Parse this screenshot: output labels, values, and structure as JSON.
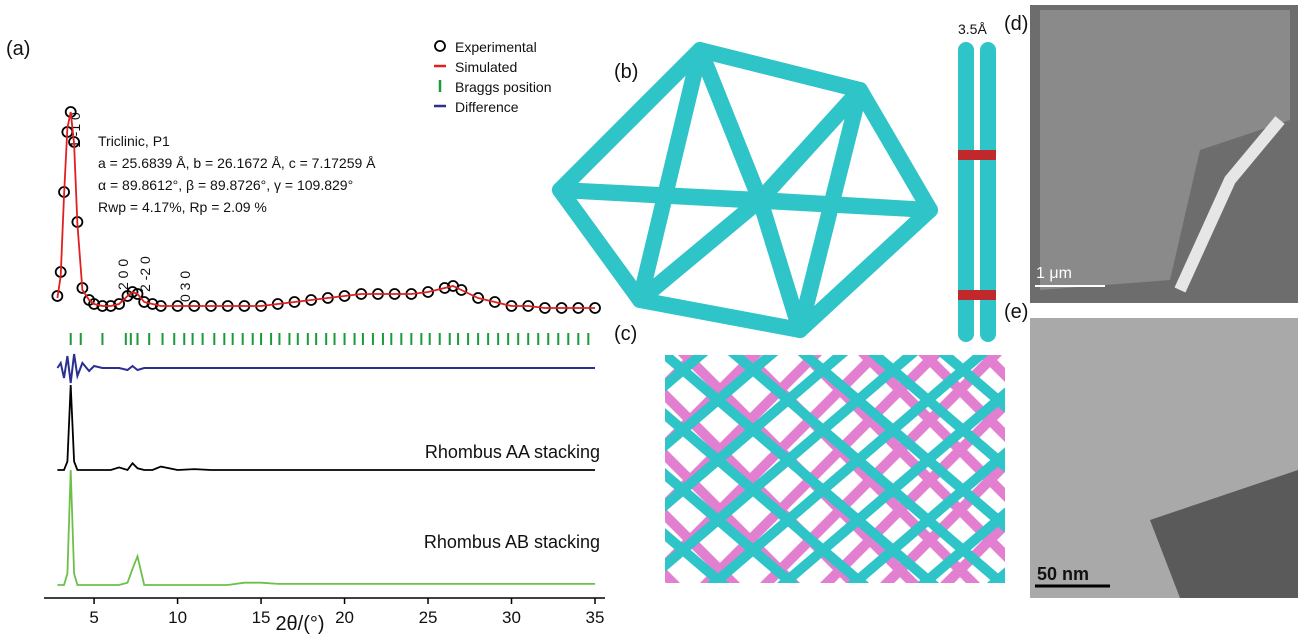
{
  "chart_data": {
    "type": "line",
    "panel_label": "(a)",
    "x_label": "2θ/(°)",
    "xlim": [
      2,
      35
    ],
    "xticks": [
      5,
      10,
      15,
      20,
      25,
      30,
      35
    ],
    "x": [
      2.8,
      3.0,
      3.2,
      3.4,
      3.6,
      3.8,
      4.0,
      4.3,
      4.7,
      5,
      5.5,
      6,
      6.5,
      7,
      7.3,
      7.6,
      8,
      8.5,
      9,
      10,
      11,
      12,
      13,
      14,
      15,
      16,
      17,
      18,
      19,
      20,
      21,
      22,
      23,
      24,
      25,
      26,
      26.5,
      27,
      28,
      29,
      30,
      31,
      32,
      33,
      34,
      35
    ],
    "series": [
      {
        "name": "Experimental",
        "color": "#000000",
        "values": [
          8,
          20,
          60,
          90,
          100,
          85,
          45,
          12,
          6,
          4,
          3,
          3,
          4,
          8,
          10,
          9,
          5,
          4,
          3,
          3,
          3,
          3,
          3,
          3,
          3,
          4,
          5,
          6,
          7,
          8,
          9,
          9,
          9,
          9,
          10,
          12,
          13,
          11,
          7,
          5,
          3,
          3,
          2,
          2,
          2,
          2
        ]
      },
      {
        "name": "Simulated",
        "color": "#e02020",
        "values": [
          7,
          18,
          58,
          92,
          100,
          84,
          44,
          11,
          6,
          4,
          3,
          3,
          4,
          8,
          10,
          9,
          5,
          4,
          3,
          3,
          3,
          3,
          3,
          3,
          3,
          4,
          5,
          6,
          7,
          8,
          9,
          9,
          9,
          9,
          10,
          12,
          13,
          11,
          7,
          5,
          3,
          3,
          2,
          2,
          2,
          2
        ]
      },
      {
        "name": "Difference",
        "color": "#2b2f8f",
        "values": [
          0,
          5,
          -10,
          12,
          -15,
          14,
          -8,
          5,
          -3,
          2,
          0,
          0,
          0,
          -2,
          2,
          -2,
          0,
          0,
          0,
          0,
          0,
          0,
          0,
          0,
          0,
          0,
          0,
          0,
          0,
          0,
          0,
          0,
          0,
          0,
          0,
          0,
          0,
          0,
          0,
          0,
          0,
          0,
          0,
          0,
          0,
          0
        ]
      },
      {
        "name": "Rhombus AA stacking",
        "color": "#000000",
        "values": [
          0,
          0,
          0,
          10,
          100,
          10,
          0,
          0,
          0,
          0,
          0,
          0,
          3,
          0,
          8,
          2,
          0,
          0,
          4,
          0,
          1,
          0,
          0,
          0,
          0,
          0,
          0,
          0,
          0,
          0,
          0,
          0,
          0,
          0,
          0,
          0,
          0,
          0,
          0,
          0,
          0,
          0,
          0,
          0,
          0,
          0
        ]
      },
      {
        "name": "Rhombus AB stacking",
        "color": "#6cc04a",
        "values": [
          0,
          0,
          0,
          10,
          100,
          10,
          0,
          0,
          0,
          0,
          0,
          0,
          0,
          2,
          14,
          25,
          0,
          0,
          0,
          0,
          0,
          0,
          0,
          2,
          2,
          1,
          1,
          1,
          1,
          1,
          1,
          1,
          1,
          1,
          1,
          1,
          1,
          1,
          1,
          1,
          1,
          1,
          1,
          1,
          1,
          1
        ]
      }
    ],
    "bragg": {
      "name": "Braggs position",
      "color": "#1a9a3a",
      "x": [
        3.6,
        4.2,
        5.5,
        6.9,
        7.2,
        7.6,
        8.3,
        9.1,
        9.8,
        10.4,
        10.9,
        11.5,
        12.2,
        12.8,
        13.3,
        13.9,
        14.5,
        15.0,
        15.6,
        16.1,
        16.7,
        17.2,
        17.8,
        18.3,
        18.9,
        19.4,
        20.0,
        20.6,
        21.1,
        21.7,
        22.3,
        22.8,
        23.4,
        24.0,
        24.6,
        25.1,
        25.7,
        26.3,
        26.8,
        27.4,
        28.0,
        28.6,
        29.2,
        29.8,
        30.4,
        31.0,
        31.6,
        32.2,
        32.8,
        33.4,
        34.0,
        34.6
      ]
    },
    "peak_labels": [
      "1 -1 0",
      "2 0 0",
      "2 -2 0",
      "0 3 0"
    ],
    "cell_info": [
      "Triclinic, P1",
      "a = 25.6839 Å, b = 26.1672 Å, c = 7.17259 Å",
      "α = 89.8612°, β = 89.8726°, γ = 109.829°",
      "Rwp = 4.17%, Rp = 2.09 %"
    ]
  },
  "panels": {
    "b": "(b)",
    "c": "(c)",
    "d": "(d)",
    "e": "(e)",
    "spacing": "3.5Å",
    "scale_d": "1 μm",
    "scale_e": "50 nm"
  }
}
